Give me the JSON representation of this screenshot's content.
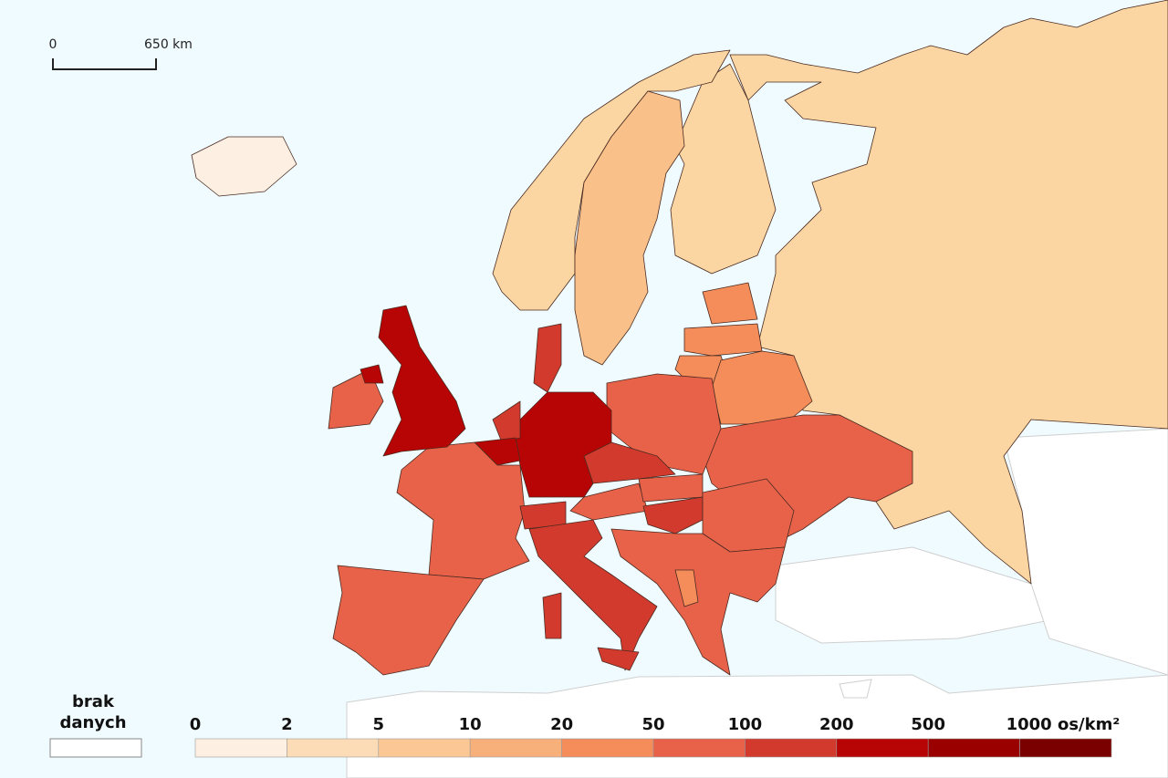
{
  "scale_bar": {
    "start": "0",
    "end": "650 km"
  },
  "legend": {
    "no_data_label": "brak danych",
    "ticks": [
      0,
      2,
      5,
      10,
      20,
      50,
      100,
      200,
      500,
      {
        "value": 1000,
        "label": "1000 os/km²"
      }
    ],
    "colors": [
      "#fdf0e3",
      "#fbdcb6",
      "#fbc895",
      "#f8b07a",
      "#f48d5a",
      "#e8624a",
      "#d33a2e",
      "#b70404",
      "#9b0000",
      "#7a0000"
    ]
  }
}
